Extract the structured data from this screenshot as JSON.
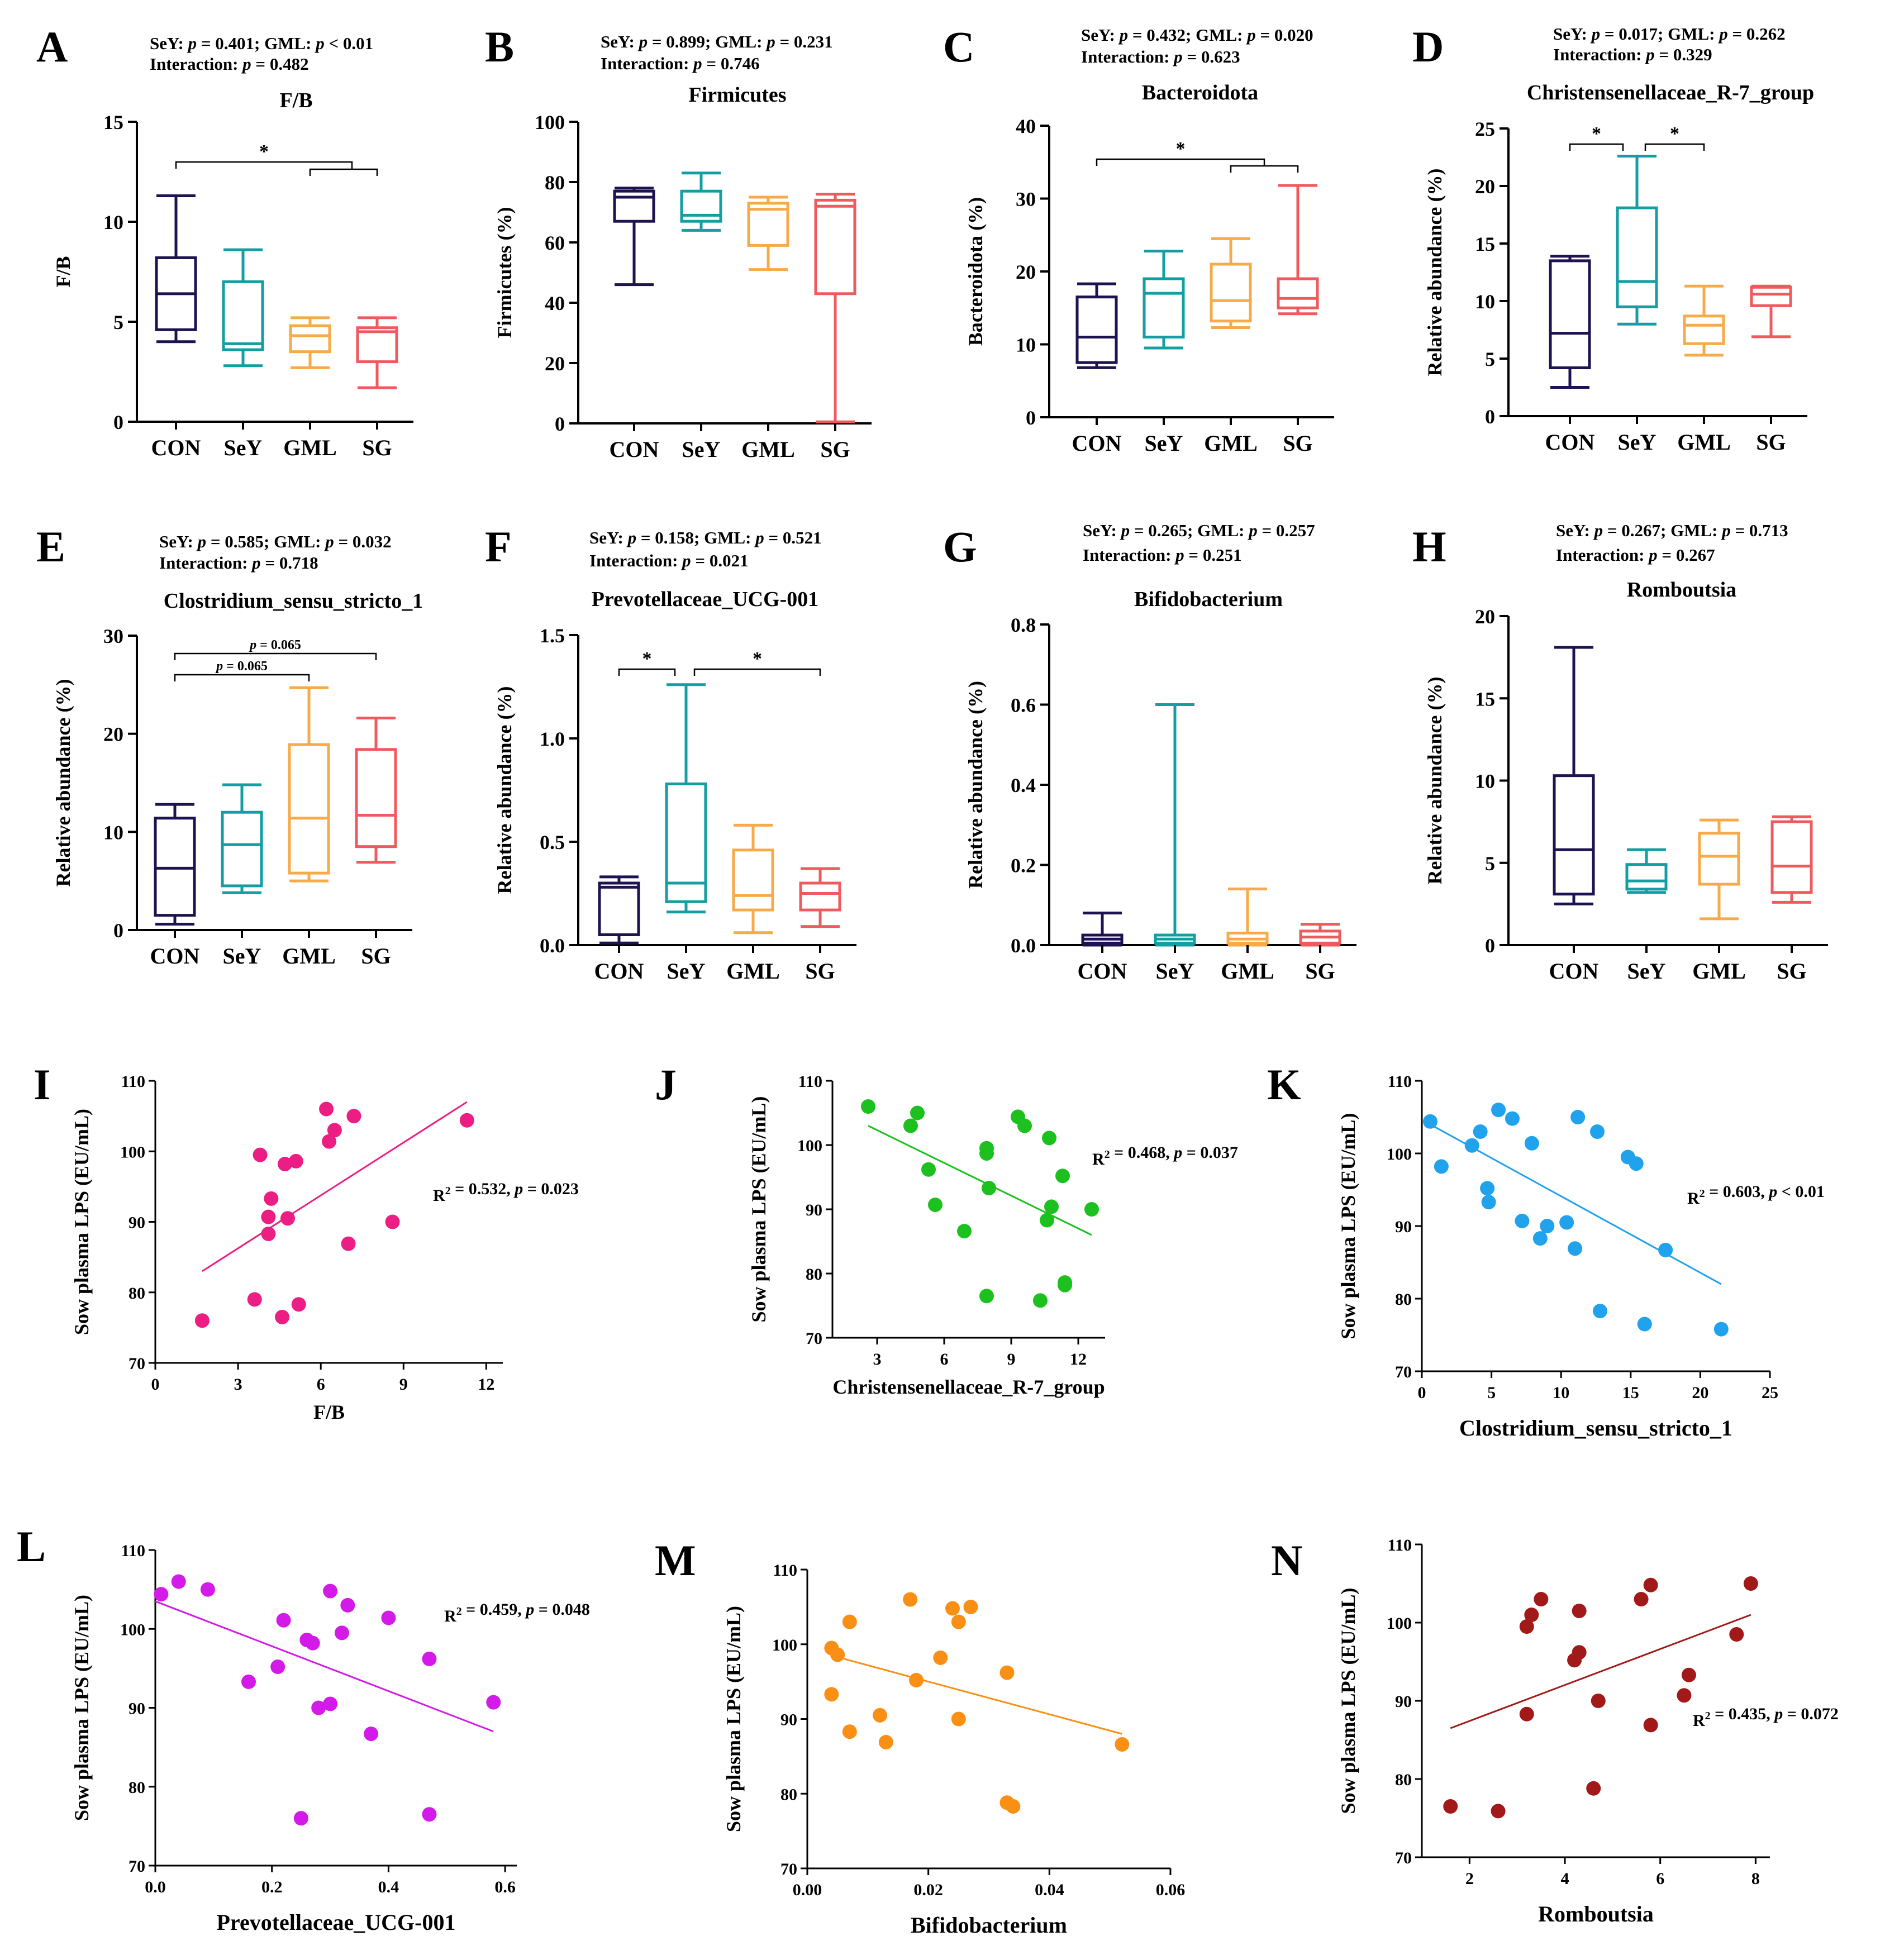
{
  "colors": {
    "CON": "#1e1250",
    "SeY": "#139ea2",
    "GML": "#f7aa48",
    "SG": "#ef5a5e"
  },
  "chart_data": [
    {
      "id": "A",
      "type": "box",
      "title": "F/B",
      "ylabel": "F/B",
      "categories": [
        "CON",
        "SeY",
        "GML",
        "SG"
      ],
      "stats_line1": "SeY: p = 0.401;  GML: p < 0.01",
      "stats_line2": "Interaction: p = 0.482",
      "ylim": [
        0,
        15
      ],
      "yticks": [
        "0",
        "5",
        "10",
        "15"
      ],
      "boxes": [
        {
          "min": 4.0,
          "q1": 4.6,
          "med": 6.4,
          "q3": 8.2,
          "max": 11.3
        },
        {
          "min": 2.8,
          "q1": 3.6,
          "med": 3.9,
          "q3": 7.0,
          "max": 8.6
        },
        {
          "min": 2.7,
          "q1": 3.5,
          "med": 4.3,
          "q3": 4.8,
          "max": 5.2
        },
        {
          "min": 1.7,
          "q1": 3.0,
          "med": 4.5,
          "q3": 4.7,
          "max": 5.2
        }
      ],
      "sig": [
        {
          "text": "*",
          "note": "CON vs GML/SG"
        }
      ]
    },
    {
      "id": "B",
      "type": "box",
      "title": "Firmicutes",
      "ylabel": "Firmicutes (%)",
      "categories": [
        "CON",
        "SeY",
        "GML",
        "SG"
      ],
      "stats_line1": "SeY: p = 0.899;  GML: p = 0.231",
      "stats_line2": "Interaction: p = 0.746",
      "ylim": [
        0,
        100
      ],
      "yticks": [
        "0",
        "20",
        "40",
        "60",
        "80",
        "100"
      ],
      "boxes": [
        {
          "min": 46,
          "q1": 67,
          "med": 75,
          "q3": 77,
          "max": 78
        },
        {
          "min": 64,
          "q1": 67,
          "med": 69,
          "q3": 77,
          "max": 83
        },
        {
          "min": 51,
          "q1": 59,
          "med": 71,
          "q3": 73,
          "max": 75
        },
        {
          "min": 0.5,
          "q1": 43,
          "med": 72,
          "q3": 74,
          "max": 76
        }
      ],
      "sig": []
    },
    {
      "id": "C",
      "type": "box",
      "title": "Bacteroidota",
      "ylabel": "Bacteroidota (%)",
      "categories": [
        "CON",
        "SeY",
        "GML",
        "SG"
      ],
      "stats_line1": "SeY: p = 0.432;  GML: p = 0.020",
      "stats_line2": "Interaction: p = 0.623",
      "ylim": [
        0,
        40
      ],
      "yticks": [
        "0",
        "10",
        "20",
        "30",
        "40"
      ],
      "boxes": [
        {
          "min": 6.8,
          "q1": 7.5,
          "med": 11,
          "q3": 16.5,
          "max": 18.3
        },
        {
          "min": 9.5,
          "q1": 11,
          "med": 17,
          "q3": 19,
          "max": 22.8
        },
        {
          "min": 12.3,
          "q1": 13.2,
          "med": 16,
          "q3": 21,
          "max": 24.5
        },
        {
          "min": 14.2,
          "q1": 15,
          "med": 16.3,
          "q3": 19,
          "max": 31.8
        }
      ],
      "sig": [
        {
          "text": "*",
          "note": "CON vs GML/SG"
        }
      ]
    },
    {
      "id": "D",
      "type": "box",
      "title": "Christensenellaceae_R-7_group",
      "ylabel": "Relative abundance (%)",
      "categories": [
        "CON",
        "SeY",
        "GML",
        "SG"
      ],
      "stats_line1": "SeY: p = 0.017;  GML: p = 0.262",
      "stats_line2": "Interaction: p = 0.329",
      "ylim": [
        0,
        25
      ],
      "yticks": [
        "0",
        "5",
        "10",
        "15",
        "20",
        "25"
      ],
      "boxes": [
        {
          "min": 2.5,
          "q1": 4.2,
          "med": 7.2,
          "q3": 13.5,
          "max": 13.9
        },
        {
          "min": 8.0,
          "q1": 9.5,
          "med": 11.7,
          "q3": 18.1,
          "max": 22.6
        },
        {
          "min": 5.3,
          "q1": 6.3,
          "med": 7.9,
          "q3": 8.7,
          "max": 11.3
        },
        {
          "min": 6.9,
          "q1": 9.6,
          "med": 10.6,
          "q3": 11.2,
          "max": 11.3
        }
      ],
      "sig": [
        {
          "text": "*",
          "note": "CON vs SeY"
        },
        {
          "text": "*",
          "note": "SeY vs GML"
        }
      ]
    },
    {
      "id": "E",
      "type": "box",
      "title": "Clostridium_sensu_stricto_1",
      "ylabel": "Relative abundance (%)",
      "categories": [
        "CON",
        "SeY",
        "GML",
        "SG"
      ],
      "stats_line1": "SeY: p = 0.585;  GML: p = 0.032",
      "stats_line2": "Interaction: p = 0.718",
      "ylim": [
        0,
        30
      ],
      "yticks": [
        "0",
        "10",
        "20",
        "30"
      ],
      "boxes": [
        {
          "min": 0.6,
          "q1": 1.5,
          "med": 6.3,
          "q3": 11.4,
          "max": 12.8
        },
        {
          "min": 3.8,
          "q1": 4.5,
          "med": 8.7,
          "q3": 12,
          "max": 14.8
        },
        {
          "min": 5.0,
          "q1": 5.8,
          "med": 11.4,
          "q3": 18.9,
          "max": 24.7
        },
        {
          "min": 6.9,
          "q1": 8.5,
          "med": 11.7,
          "q3": 18.4,
          "max": 21.6
        }
      ],
      "sig": [
        {
          "text": "p = 0.065",
          "note": "CON vs GML"
        },
        {
          "text": "p = 0.065",
          "note": "CON vs SG"
        }
      ]
    },
    {
      "id": "F",
      "type": "box",
      "title": "Prevotellaceae_UCG-001",
      "ylabel": "Relative abundance (%)",
      "categories": [
        "CON",
        "SeY",
        "GML",
        "SG"
      ],
      "stats_line1": "SeY: p = 0.158;  GML: p = 0.521",
      "stats_line2": "Interaction: p = 0.021",
      "ylim": [
        0,
        1.5
      ],
      "yticks": [
        "0.0",
        "0.5",
        "1.0",
        "1.5"
      ],
      "boxes": [
        {
          "min": 0.01,
          "q1": 0.05,
          "med": 0.28,
          "q3": 0.3,
          "max": 0.33
        },
        {
          "min": 0.16,
          "q1": 0.21,
          "med": 0.3,
          "q3": 0.78,
          "max": 1.26
        },
        {
          "min": 0.06,
          "q1": 0.17,
          "med": 0.24,
          "q3": 0.46,
          "max": 0.58
        },
        {
          "min": 0.09,
          "q1": 0.17,
          "med": 0.25,
          "q3": 0.3,
          "max": 0.37
        }
      ],
      "sig": [
        {
          "text": "*",
          "note": "CON vs SeY"
        },
        {
          "text": "*",
          "note": "SeY vs SG"
        }
      ]
    },
    {
      "id": "G",
      "type": "box",
      "title": "Bifidobacterium",
      "ylabel": "Relative abundance (%)",
      "categories": [
        "CON",
        "SeY",
        "GML",
        "SG"
      ],
      "stats_line1": "SeY: p = 0.265;  GML: p = 0.257",
      "stats_line2": "Interaction: p = 0.251",
      "ylim": [
        0,
        0.8
      ],
      "yticks": [
        "0.0",
        "0.2",
        "0.4",
        "0.6",
        "0.8"
      ],
      "boxes": [
        {
          "min": 0.0,
          "q1": 0.005,
          "med": 0.015,
          "q3": 0.025,
          "max": 0.08
        },
        {
          "min": 0.0,
          "q1": 0.005,
          "med": 0.015,
          "q3": 0.025,
          "max": 0.6
        },
        {
          "min": 0.0,
          "q1": 0.005,
          "med": 0.015,
          "q3": 0.03,
          "max": 0.14
        },
        {
          "min": 0.0,
          "q1": 0.005,
          "med": 0.02,
          "q3": 0.035,
          "max": 0.052
        }
      ],
      "sig": []
    },
    {
      "id": "H",
      "type": "box",
      "title": "Romboutsia",
      "ylabel": "Relative abundance (%)",
      "categories": [
        "CON",
        "SeY",
        "GML",
        "SG"
      ],
      "stats_line1": "SeY: p = 0.267;  GML: p = 0.713",
      "stats_line2": "Interaction: p = 0.267",
      "ylim": [
        0,
        20
      ],
      "yticks": [
        "0",
        "5",
        "10",
        "15",
        "20"
      ],
      "boxes": [
        {
          "min": 2.5,
          "q1": 3.1,
          "med": 5.8,
          "q3": 10.3,
          "max": 18.1
        },
        {
          "min": 3.2,
          "q1": 3.4,
          "med": 3.9,
          "q3": 4.9,
          "max": 5.8
        },
        {
          "min": 1.6,
          "q1": 3.7,
          "med": 5.4,
          "q3": 6.8,
          "max": 7.6
        },
        {
          "min": 2.6,
          "q1": 3.2,
          "med": 4.8,
          "q3": 7.5,
          "max": 7.8
        }
      ],
      "sig": []
    },
    {
      "id": "I",
      "type": "scatter",
      "xlabel": "F/B",
      "ylabel": "Sow plasma LPS (EU/mL)",
      "color": "#ed1e83",
      "xlim": [
        0,
        12.6
      ],
      "ylim": [
        70,
        110
      ],
      "xticks": [
        0,
        3,
        6,
        9,
        12
      ],
      "yticks": [
        70,
        80,
        90,
        100,
        110
      ],
      "annotation": "R² = 0.532, p = 0.023",
      "fit": [
        [
          1.7,
          83
        ],
        [
          11.3,
          107
        ]
      ],
      "points": [
        [
          1.7,
          76
        ],
        [
          3.6,
          79
        ],
        [
          3.8,
          99.5
        ],
        [
          4.1,
          88.3
        ],
        [
          4.1,
          90.7
        ],
        [
          4.2,
          93.3
        ],
        [
          4.6,
          76.5
        ],
        [
          4.7,
          98.2
        ],
        [
          4.8,
          90.5
        ],
        [
          5.1,
          98.6
        ],
        [
          5.2,
          78.3
        ],
        [
          6.2,
          106
        ],
        [
          6.3,
          101.4
        ],
        [
          6.5,
          103
        ],
        [
          7.0,
          86.9
        ],
        [
          7.2,
          105
        ],
        [
          8.6,
          90
        ],
        [
          11.3,
          104.4
        ]
      ]
    },
    {
      "id": "J",
      "type": "scatter",
      "xlabel": "Christensenellaceae_R-7_group",
      "ylabel": "Sow plasma LPS (EU/mL)",
      "color": "#1dc11f",
      "xlim": [
        1,
        13.2
      ],
      "ylim": [
        70,
        110
      ],
      "xticks": [
        3,
        6,
        9,
        12
      ],
      "yticks": [
        70,
        80,
        90,
        100,
        110
      ],
      "annotation": "R² = 0.468, p = 0.037",
      "fit": [
        [
          2.6,
          103
        ],
        [
          12.6,
          86
        ]
      ],
      "points": [
        [
          2.6,
          106
        ],
        [
          4.5,
          103
        ],
        [
          4.8,
          105
        ],
        [
          5.3,
          96.2
        ],
        [
          5.6,
          90.7
        ],
        [
          6.9,
          86.6
        ],
        [
          7.9,
          98.7
        ],
        [
          7.9,
          99.5
        ],
        [
          7.9,
          76.5
        ],
        [
          8.0,
          93.3
        ],
        [
          9.3,
          104.4
        ],
        [
          9.6,
          103
        ],
        [
          10.3,
          75.8
        ],
        [
          10.6,
          88.3
        ],
        [
          10.7,
          101.1
        ],
        [
          10.8,
          90.4
        ],
        [
          11.3,
          95.2
        ],
        [
          11.4,
          78.6
        ],
        [
          11.4,
          78.2
        ],
        [
          12.6,
          90
        ]
      ]
    },
    {
      "id": "K",
      "type": "scatter",
      "xlabel": "Clostridium_sensu_stricto_1",
      "ylabel": "Sow plasma LPS (EU/mL)",
      "color": "#20a2ec",
      "xlim": [
        0,
        25
      ],
      "ylim": [
        70,
        110
      ],
      "xticks": [
        0,
        5,
        10,
        15,
        20,
        25
      ],
      "yticks": [
        70,
        80,
        90,
        100,
        110
      ],
      "annotation": "R² = 0.603, p < 0.01",
      "fit": [
        [
          0.6,
          104
        ],
        [
          21.5,
          82
        ]
      ],
      "points": [
        [
          0.6,
          104.4
        ],
        [
          1.4,
          98.2
        ],
        [
          3.6,
          101.1
        ],
        [
          4.2,
          103
        ],
        [
          4.7,
          95.2
        ],
        [
          4.8,
          93.3
        ],
        [
          5.5,
          106
        ],
        [
          6.5,
          104.8
        ],
        [
          7.2,
          90.7
        ],
        [
          7.9,
          101.4
        ],
        [
          8.5,
          88.3
        ],
        [
          9.0,
          90
        ],
        [
          10.4,
          90.5
        ],
        [
          11.0,
          86.9
        ],
        [
          11.2,
          105
        ],
        [
          12.6,
          103
        ],
        [
          12.8,
          78.3
        ],
        [
          14.8,
          99.5
        ],
        [
          15.4,
          98.6
        ],
        [
          16.0,
          76.5
        ],
        [
          17.5,
          86.7
        ],
        [
          21.5,
          75.8
        ]
      ]
    },
    {
      "id": "L",
      "type": "scatter",
      "xlabel": "Prevotellaceae_UCG-001",
      "ylabel": "Sow plasma LPS (EU/mL)",
      "color": "#d41ae8",
      "xlim": [
        0,
        0.62
      ],
      "ylim": [
        70,
        110
      ],
      "xticks": [
        "0.0",
        "0.2",
        "0.4",
        "0.6"
      ],
      "yticks": [
        70,
        80,
        90,
        100,
        110
      ],
      "annotation": "R² = 0.459, p = 0.048",
      "fit": [
        [
          0.0,
          103.5
        ],
        [
          0.58,
          87
        ]
      ],
      "points": [
        [
          0.01,
          104.4
        ],
        [
          0.04,
          106
        ],
        [
          0.09,
          105
        ],
        [
          0.16,
          93.3
        ],
        [
          0.21,
          95.2
        ],
        [
          0.22,
          101.1
        ],
        [
          0.25,
          76
        ],
        [
          0.26,
          98.6
        ],
        [
          0.27,
          98.2
        ],
        [
          0.28,
          90
        ],
        [
          0.3,
          104.8
        ],
        [
          0.3,
          90.5
        ],
        [
          0.32,
          99.5
        ],
        [
          0.33,
          103
        ],
        [
          0.37,
          86.7
        ],
        [
          0.4,
          101.4
        ],
        [
          0.47,
          96.2
        ],
        [
          0.47,
          76.5
        ],
        [
          0.58,
          90.7
        ]
      ]
    },
    {
      "id": "M",
      "type": "scatter",
      "xlabel": "Bifidobacterium",
      "ylabel": "Sow plasma LPS (EU/mL)",
      "color": "#f98f14",
      "xlim": [
        0,
        0.06
      ],
      "ylim": [
        70,
        110
      ],
      "xticks": [
        "0.00",
        "0.02",
        "0.04",
        "0.06"
      ],
      "yticks": [
        70,
        80,
        90,
        100,
        110
      ],
      "annotation": "",
      "fit": [
        [
          0.004,
          98.5
        ],
        [
          0.052,
          88
        ]
      ],
      "points": [
        [
          0.004,
          99.5
        ],
        [
          0.004,
          93.3
        ],
        [
          0.005,
          98.6
        ],
        [
          0.007,
          103
        ],
        [
          0.007,
          88.3
        ],
        [
          0.012,
          90.5
        ],
        [
          0.013,
          86.9
        ],
        [
          0.017,
          106
        ],
        [
          0.018,
          95.2
        ],
        [
          0.022,
          98.2
        ],
        [
          0.024,
          104.8
        ],
        [
          0.025,
          103
        ],
        [
          0.025,
          90
        ],
        [
          0.027,
          105
        ],
        [
          0.033,
          96.2
        ],
        [
          0.033,
          78.8
        ],
        [
          0.034,
          78.3
        ],
        [
          0.052,
          86.6
        ]
      ]
    },
    {
      "id": "N",
      "type": "scatter",
      "xlabel": "Romboutsia",
      "ylabel": "Sow plasma LPS (EU/mL)",
      "color": "#a11919",
      "xlim": [
        1,
        8.3
      ],
      "ylim": [
        70,
        110
      ],
      "xticks": [
        2,
        4,
        6,
        8
      ],
      "yticks": [
        70,
        80,
        90,
        100,
        110
      ],
      "annotation": "R² = 0.435, p = 0.072",
      "fit": [
        [
          1.6,
          86.5
        ],
        [
          7.9,
          101
        ]
      ],
      "points": [
        [
          1.6,
          76.5
        ],
        [
          2.6,
          75.9
        ],
        [
          3.2,
          99.5
        ],
        [
          3.3,
          101
        ],
        [
          3.5,
          103
        ],
        [
          3.2,
          88.3
        ],
        [
          4.2,
          95.2
        ],
        [
          4.3,
          101.5
        ],
        [
          4.3,
          96.2
        ],
        [
          4.6,
          78.8
        ],
        [
          4.7,
          90
        ],
        [
          5.6,
          103
        ],
        [
          5.8,
          104.8
        ],
        [
          5.8,
          86.9
        ],
        [
          6.5,
          90.7
        ],
        [
          6.6,
          93.3
        ],
        [
          7.6,
          98.5
        ],
        [
          7.9,
          105
        ]
      ]
    }
  ]
}
